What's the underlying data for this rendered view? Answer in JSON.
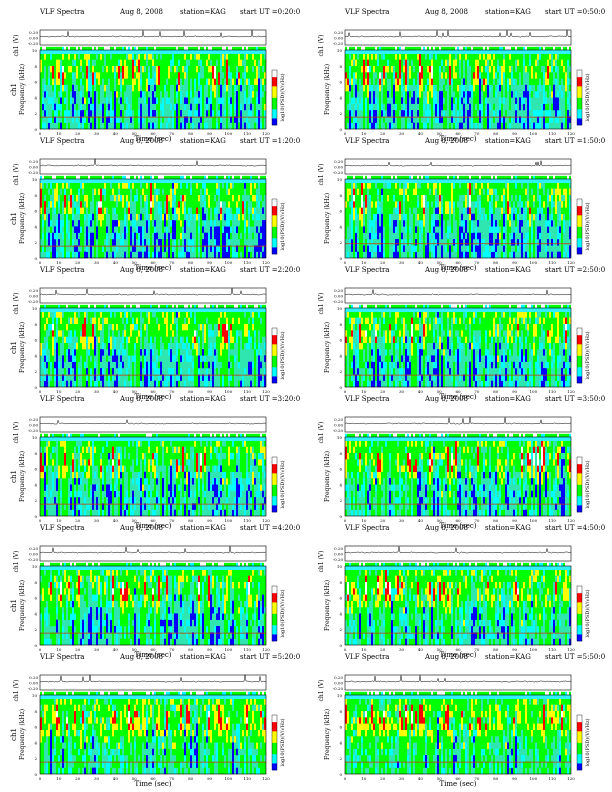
{
  "figure": {
    "panels": [
      {
        "header": {
          "title": "VLF Spectra",
          "date": "Aug 8, 2008",
          "station": "station=KAG",
          "start": "start UT =0:20:0"
        },
        "spectro_ylabel": "ch1\nFrequency (kHz)",
        "colorbar_label": "log10(PSD)(V/√Hz)"
      },
      {
        "header": {
          "title": "VLF Spectra",
          "date": "Aug 8, 2008",
          "station": "station=KAG",
          "start": "start UT =0:50:0"
        },
        "spectro_ylabel": "Frequency (kHz)",
        "colorbar_label": "log10(PSD)(V/√Hz)"
      },
      {
        "header": {
          "title": "VLF Spectra",
          "date": "Aug 8, 2008",
          "station": "station=KAG",
          "start": "start UT =1:20:0"
        },
        "spectro_ylabel": "ch1\nFrequency (kHz)",
        "colorbar_label": "log10(PSD)(V/√Hz)"
      },
      {
        "header": {
          "title": "VLF Spectra",
          "date": "Aug 8, 2008",
          "station": "station=KAG",
          "start": "start UT =1:50:0"
        },
        "spectro_ylabel": "Frequency (kHz)",
        "colorbar_label": "log10(PSD)(V/√Hz)"
      },
      {
        "header": {
          "title": "VLF Spectra",
          "date": "Aug 8, 2008",
          "station": "station=KAG",
          "start": "start UT =2:20:0"
        },
        "spectro_ylabel": "ch1\nFrequency (kHz)",
        "colorbar_label": "log10(PSD)(V/√Hz)"
      },
      {
        "header": {
          "title": "VLF Spectra",
          "date": "Aug 8, 2008",
          "station": "station=KAG",
          "start": "start UT =2:50:0"
        },
        "spectro_ylabel": "Frequency (kHz)",
        "colorbar_label": "log10(PSD)(V/√Hz)"
      },
      {
        "header": {
          "title": "VLF Spectra",
          "date": "Aug 8, 2008",
          "station": "station=KAG",
          "start": "start UT =3:20:0"
        },
        "spectro_ylabel": "ch1\nFrequency (kHz)",
        "colorbar_label": "log10(PSD)(V/√Hz)"
      },
      {
        "header": {
          "title": "VLF Spectra",
          "date": "Aug 8, 2008",
          "station": "station=KAG",
          "start": "start UT =3:50:0"
        },
        "spectro_ylabel": "Frequency (kHz)",
        "colorbar_label": "log10(PSD)(V/√Hz)"
      },
      {
        "header": {
          "title": "VLF Spectra",
          "date": "Aug 8, 2008",
          "station": "station=KAG",
          "start": "start UT =4:20:0"
        },
        "spectro_ylabel": "ch1\nFrequency (kHz)",
        "colorbar_label": "log10(PSD)(V/√Hz)"
      },
      {
        "header": {
          "title": "VLF Spectra",
          "date": "Aug 8, 2008",
          "station": "station=KAG",
          "start": "start UT =4:50:0"
        },
        "spectro_ylabel": "Frequency (kHz)",
        "colorbar_label": "log10(PSD)(V/√Hz)"
      },
      {
        "header": {
          "title": "VLF Spectra",
          "date": "Aug 8, 2008",
          "station": "station=KAG",
          "start": "start UT =5:20:0"
        },
        "spectro_ylabel": "ch1\nFrequency (kHz)",
        "colorbar_label": "log10(PSD)(V/√Hz)"
      },
      {
        "header": {
          "title": "VLF Spectra",
          "date": "Aug 8, 2008",
          "station": "station=KAG",
          "start": "start UT =5:50:0"
        },
        "spectro_ylabel": "Frequency (kHz)",
        "colorbar_label": "log10(PSD)(V/√Hz)"
      }
    ],
    "shared": {
      "waveform_ylabel": "ch1 (V)",
      "waveform_ticks": [
        "0.20",
        "0.00",
        "-0.20"
      ],
      "freq_ticks": [
        "10",
        "8",
        "6",
        "4",
        "2",
        "0"
      ],
      "time_ticks": [
        "0",
        "10",
        "20",
        "30",
        "40",
        "50",
        "60",
        "70",
        "80",
        "90",
        "100",
        "110",
        "120"
      ],
      "xlabel": "Time (sec)"
    }
  },
  "chart_data": {
    "type": "heatmap",
    "title": "VLF Spectra",
    "date": "Aug 8, 2008",
    "station": "KAG",
    "xlabel": "Time (sec)",
    "ylabel": "Frequency (kHz)",
    "colorbar_label": "log10(PSD)(V/√Hz)",
    "xlim": [
      0,
      120
    ],
    "ylim": [
      0,
      10
    ],
    "waveform_ylim": [
      -0.2,
      0.2
    ],
    "start_times_ut": [
      "0:20:0",
      "0:50:0",
      "1:20:0",
      "1:50:0",
      "2:20:0",
      "2:50:0",
      "3:20:0",
      "3:50:0",
      "4:20:0",
      "4:50:0",
      "5:20:0",
      "5:50:0"
    ],
    "colormap": [
      "#0000ff",
      "#00ffff",
      "#00ff00",
      "#ffff00",
      "#ff0000",
      "#ffffff"
    ],
    "activity_level": [
      0.35,
      0.35,
      0.3,
      0.3,
      0.32,
      0.3,
      0.35,
      0.4,
      0.45,
      0.6,
      0.75,
      0.85
    ],
    "hum_line_khz": [
      1.5,
      1.5,
      1.5,
      1.8,
      1.5,
      1.5,
      1.5,
      1.5,
      1.5,
      1.5,
      1.5,
      1.5
    ],
    "upper_band_khz": 9.8
  }
}
